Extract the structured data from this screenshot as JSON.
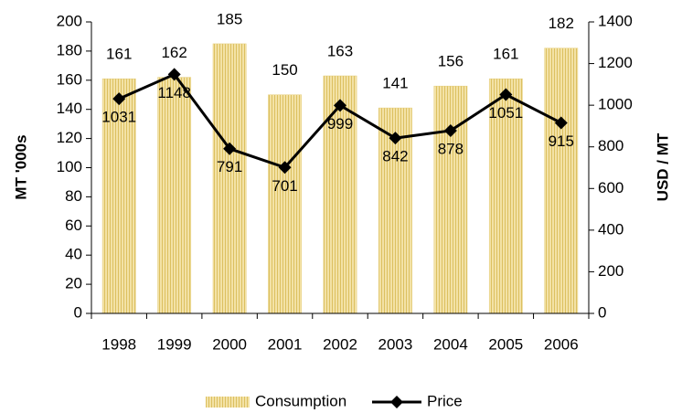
{
  "chart_data": {
    "type": "bar-line",
    "categories": [
      "1998",
      "1999",
      "2000",
      "2001",
      "2002",
      "2003",
      "2004",
      "2005",
      "2006"
    ],
    "series": [
      {
        "name": "Consumption",
        "type": "bar",
        "color": "#ecd487",
        "axis": "y",
        "values": [
          161,
          162,
          185,
          150,
          163,
          141,
          156,
          161,
          182
        ]
      },
      {
        "name": "Price",
        "type": "line",
        "color": "#000000",
        "axis": "y2",
        "values": [
          1031,
          1148,
          791,
          701,
          999,
          842,
          878,
          1051,
          915
        ]
      }
    ],
    "ylabel": "MT '000s",
    "y2label": "USD / MT",
    "ylim": [
      0,
      200
    ],
    "yticks": [
      0,
      20,
      40,
      60,
      80,
      100,
      120,
      140,
      160,
      180,
      200
    ],
    "y2lim": [
      0,
      1400
    ],
    "y2ticks": [
      0,
      200,
      400,
      600,
      800,
      1000,
      1200,
      1400
    ],
    "legend": "bottom"
  }
}
